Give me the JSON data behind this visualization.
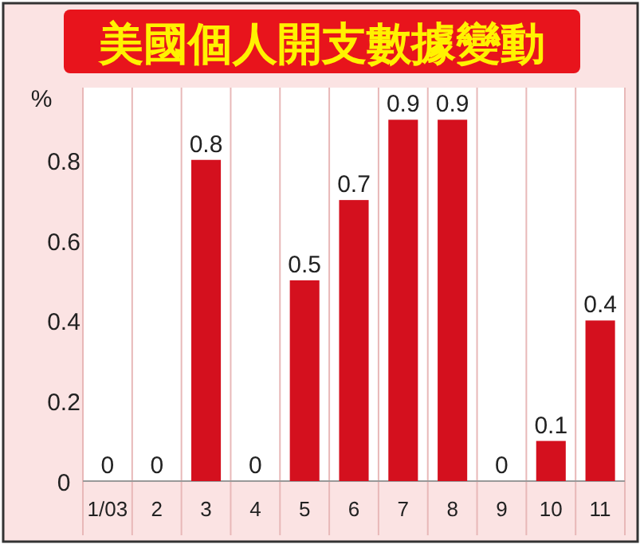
{
  "chart_data": {
    "type": "bar",
    "title": "美國個人開支數據變動",
    "ylabel": "%",
    "categories": [
      "1/03",
      "2",
      "3",
      "4",
      "5",
      "6",
      "7",
      "8",
      "9",
      "10",
      "11"
    ],
    "values": [
      0,
      0,
      0.8,
      0,
      0.5,
      0.7,
      0.9,
      0.9,
      0,
      0.1,
      0.4
    ],
    "color": "#d4101e",
    "ylim": [
      0,
      0.98
    ],
    "yticks": [
      0,
      0.2,
      0.4,
      0.6,
      0.8
    ],
    "grid": "x",
    "data_labels": true
  }
}
